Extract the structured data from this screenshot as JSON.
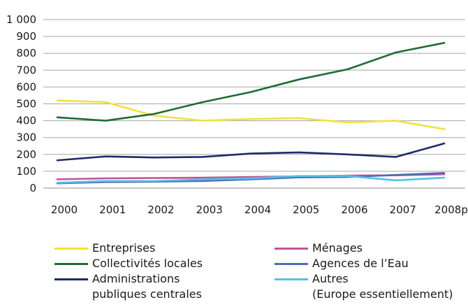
{
  "chart_data": {
    "type": "line",
    "categories": [
      "2000",
      "2001",
      "2002",
      "2003",
      "2004",
      "2005",
      "2006",
      "2007",
      "2008p"
    ],
    "ylim": [
      0,
      1000
    ],
    "yticks": [
      {
        "value": 0,
        "label": "0"
      },
      {
        "value": 100,
        "label": "100"
      },
      {
        "value": 200,
        "label": "200"
      },
      {
        "value": 300,
        "label": "300"
      },
      {
        "value": 400,
        "label": "400"
      },
      {
        "value": 500,
        "label": "500"
      },
      {
        "value": 600,
        "label": "600"
      },
      {
        "value": 700,
        "label": "700"
      },
      {
        "value": 800,
        "label": "800"
      },
      {
        "value": 900,
        "label": "900"
      },
      {
        "value": 1000,
        "label": "1 000"
      }
    ],
    "grid": true,
    "legend_position": "bottom",
    "series": [
      {
        "key": "entreprises",
        "name": "Entreprises",
        "color": "#f2e13a",
        "values": [
          520,
          510,
          430,
          400,
          410,
          415,
          390,
          400,
          350
        ]
      },
      {
        "key": "collectivites",
        "name": "Collectivités locales",
        "color": "#1f6b32",
        "values": [
          420,
          400,
          440,
          510,
          570,
          645,
          705,
          805,
          862
        ]
      },
      {
        "key": "administrations",
        "name": "Administrations\npubliques centrales",
        "color": "#1f2a6b",
        "values": [
          165,
          188,
          182,
          185,
          205,
          212,
          200,
          185,
          265
        ]
      },
      {
        "key": "menages",
        "name": "Ménages",
        "color": "#c2549a",
        "values": [
          52,
          58,
          60,
          62,
          66,
          70,
          74,
          76,
          82
        ]
      },
      {
        "key": "agences",
        "name": "Agences de l’Eau",
        "color": "#4a6fb5",
        "values": [
          28,
          36,
          38,
          42,
          52,
          64,
          66,
          78,
          90
        ]
      },
      {
        "key": "autres",
        "name": "Autres\n(Europe essentiellement)",
        "color": "#55c0e8",
        "values": [
          32,
          42,
          42,
          52,
          58,
          72,
          72,
          46,
          62
        ]
      }
    ]
  }
}
